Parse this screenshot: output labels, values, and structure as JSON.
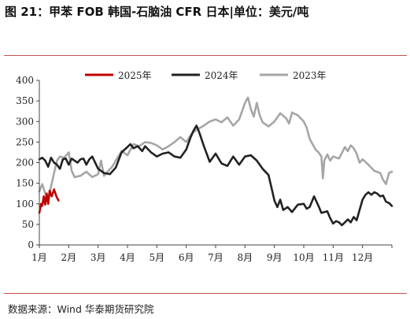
{
  "title": "图 21：甲苯 FOB 韩国-石脑油 CFR 日本|单位：美元/吨",
  "source": "数据来源：Wind  华泰期货研究院",
  "chart_data": {
    "type": "line",
    "title": "图 21：甲苯 FOB 韩国-石脑油 CFR 日本|单位：美元/吨",
    "xlabel": "",
    "ylabel": "",
    "ylim": [
      0,
      400
    ],
    "yticks": [
      0,
      50,
      100,
      150,
      200,
      250,
      300,
      350,
      400
    ],
    "x_ticks": [
      "1月",
      "2月",
      "3月",
      "4月",
      "5月",
      "6月",
      "7月",
      "8月",
      "9月",
      "10月",
      "11月",
      "12月"
    ],
    "x_unit": "month",
    "xlim": [
      1,
      13
    ],
    "grid": false,
    "legend_position": "top",
    "series": [
      {
        "name": "2025年",
        "color": "#c00000",
        "points": [
          [
            1.0,
            78
          ],
          [
            1.06,
            100
          ],
          [
            1.1,
            95
          ],
          [
            1.15,
            118
          ],
          [
            1.2,
            98
          ],
          [
            1.25,
            125
          ],
          [
            1.3,
            100
          ],
          [
            1.35,
            132
          ],
          [
            1.42,
            118
          ],
          [
            1.5,
            135
          ],
          [
            1.58,
            118
          ],
          [
            1.65,
            108
          ]
        ]
      },
      {
        "name": "2024年",
        "color": "#222222",
        "points": [
          [
            1.0,
            208
          ],
          [
            1.1,
            212
          ],
          [
            1.2,
            205
          ],
          [
            1.3,
            190
          ],
          [
            1.4,
            212
          ],
          [
            1.5,
            200
          ],
          [
            1.6,
            195
          ],
          [
            1.7,
            185
          ],
          [
            1.8,
            208
          ],
          [
            1.9,
            210
          ],
          [
            2.0,
            195
          ],
          [
            2.1,
            210
          ],
          [
            2.2,
            205
          ],
          [
            2.3,
            200
          ],
          [
            2.4,
            208
          ],
          [
            2.5,
            210
          ],
          [
            2.6,
            195
          ],
          [
            2.7,
            208
          ],
          [
            2.8,
            215
          ],
          [
            3.0,
            185
          ],
          [
            3.2,
            175
          ],
          [
            3.4,
            172
          ],
          [
            3.6,
            188
          ],
          [
            3.8,
            225
          ],
          [
            4.0,
            238
          ],
          [
            4.1,
            245
          ],
          [
            4.2,
            235
          ],
          [
            4.35,
            240
          ],
          [
            4.5,
            228
          ],
          [
            4.6,
            240
          ],
          [
            4.8,
            225
          ],
          [
            5.0,
            215
          ],
          [
            5.2,
            222
          ],
          [
            5.4,
            225
          ],
          [
            5.6,
            215
          ],
          [
            5.8,
            212
          ],
          [
            6.0,
            232
          ],
          [
            6.15,
            262
          ],
          [
            6.25,
            278
          ],
          [
            6.35,
            290
          ],
          [
            6.45,
            272
          ],
          [
            6.6,
            240
          ],
          [
            6.8,
            202
          ],
          [
            7.0,
            222
          ],
          [
            7.2,
            198
          ],
          [
            7.4,
            192
          ],
          [
            7.6,
            215
          ],
          [
            7.8,
            195
          ],
          [
            8.0,
            215
          ],
          [
            8.2,
            218
          ],
          [
            8.4,
            205
          ],
          [
            8.6,
            185
          ],
          [
            8.8,
            170
          ],
          [
            8.9,
            140
          ],
          [
            9.0,
            108
          ],
          [
            9.1,
            92
          ],
          [
            9.2,
            110
          ],
          [
            9.3,
            85
          ],
          [
            9.45,
            92
          ],
          [
            9.6,
            80
          ],
          [
            9.8,
            98
          ],
          [
            10.0,
            100
          ],
          [
            10.1,
            88
          ],
          [
            10.2,
            92
          ],
          [
            10.35,
            118
          ],
          [
            10.5,
            95
          ],
          [
            10.6,
            78
          ],
          [
            10.8,
            82
          ],
          [
            10.9,
            65
          ],
          [
            11.0,
            52
          ],
          [
            11.1,
            58
          ],
          [
            11.2,
            55
          ],
          [
            11.3,
            48
          ],
          [
            11.4,
            55
          ],
          [
            11.5,
            62
          ],
          [
            11.6,
            55
          ],
          [
            11.7,
            68
          ],
          [
            11.8,
            60
          ],
          [
            11.9,
            85
          ],
          [
            12.0,
            110
          ],
          [
            12.1,
            122
          ],
          [
            12.2,
            128
          ],
          [
            12.3,
            122
          ],
          [
            12.4,
            128
          ],
          [
            12.5,
            125
          ],
          [
            12.6,
            118
          ],
          [
            12.7,
            120
          ],
          [
            12.8,
            105
          ],
          [
            12.9,
            102
          ],
          [
            13.0,
            95
          ]
        ]
      },
      {
        "name": "2023年",
        "color": "#a6a6a6",
        "points": [
          [
            1.0,
            130
          ],
          [
            1.1,
            148
          ],
          [
            1.2,
            125
          ],
          [
            1.3,
            108
          ],
          [
            1.4,
            142
          ],
          [
            1.5,
            175
          ],
          [
            1.6,
            205
          ],
          [
            1.7,
            215
          ],
          [
            1.85,
            212
          ],
          [
            2.0,
            225
          ],
          [
            2.1,
            180
          ],
          [
            2.2,
            165
          ],
          [
            2.4,
            168
          ],
          [
            2.6,
            178
          ],
          [
            2.8,
            165
          ],
          [
            3.0,
            172
          ],
          [
            3.1,
            205
          ],
          [
            3.2,
            168
          ],
          [
            3.35,
            180
          ],
          [
            3.5,
            192
          ],
          [
            3.6,
            205
          ],
          [
            3.8,
            228
          ],
          [
            4.0,
            218
          ],
          [
            4.2,
            245
          ],
          [
            4.4,
            240
          ],
          [
            4.6,
            250
          ],
          [
            4.8,
            248
          ],
          [
            5.0,
            242
          ],
          [
            5.2,
            232
          ],
          [
            5.4,
            240
          ],
          [
            5.6,
            250
          ],
          [
            5.8,
            262
          ],
          [
            6.0,
            250
          ],
          [
            6.2,
            272
          ],
          [
            6.4,
            282
          ],
          [
            6.6,
            290
          ],
          [
            6.8,
            300
          ],
          [
            7.0,
            305
          ],
          [
            7.2,
            298
          ],
          [
            7.4,
            310
          ],
          [
            7.6,
            290
          ],
          [
            7.8,
            305
          ],
          [
            7.9,
            325
          ],
          [
            8.0,
            345
          ],
          [
            8.1,
            358
          ],
          [
            8.2,
            330
          ],
          [
            8.3,
            312
          ],
          [
            8.4,
            345
          ],
          [
            8.5,
            315
          ],
          [
            8.6,
            298
          ],
          [
            8.8,
            288
          ],
          [
            9.0,
            300
          ],
          [
            9.2,
            320
          ],
          [
            9.4,
            308
          ],
          [
            9.5,
            295
          ],
          [
            9.6,
            322
          ],
          [
            9.8,
            315
          ],
          [
            10.0,
            300
          ],
          [
            10.1,
            285
          ],
          [
            10.2,
            258
          ],
          [
            10.3,
            245
          ],
          [
            10.4,
            232
          ],
          [
            10.5,
            225
          ],
          [
            10.6,
            215
          ],
          [
            10.65,
            162
          ],
          [
            10.7,
            205
          ],
          [
            10.8,
            220
          ],
          [
            10.9,
            205
          ],
          [
            11.0,
            215
          ],
          [
            11.2,
            210
          ],
          [
            11.4,
            238
          ],
          [
            11.5,
            228
          ],
          [
            11.6,
            242
          ],
          [
            11.7,
            235
          ],
          [
            11.8,
            222
          ],
          [
            11.9,
            200
          ],
          [
            12.0,
            208
          ],
          [
            12.2,
            195
          ],
          [
            12.4,
            180
          ],
          [
            12.6,
            175
          ],
          [
            12.7,
            158
          ],
          [
            12.8,
            148
          ],
          [
            12.9,
            175
          ],
          [
            13.0,
            178
          ]
        ]
      }
    ]
  }
}
